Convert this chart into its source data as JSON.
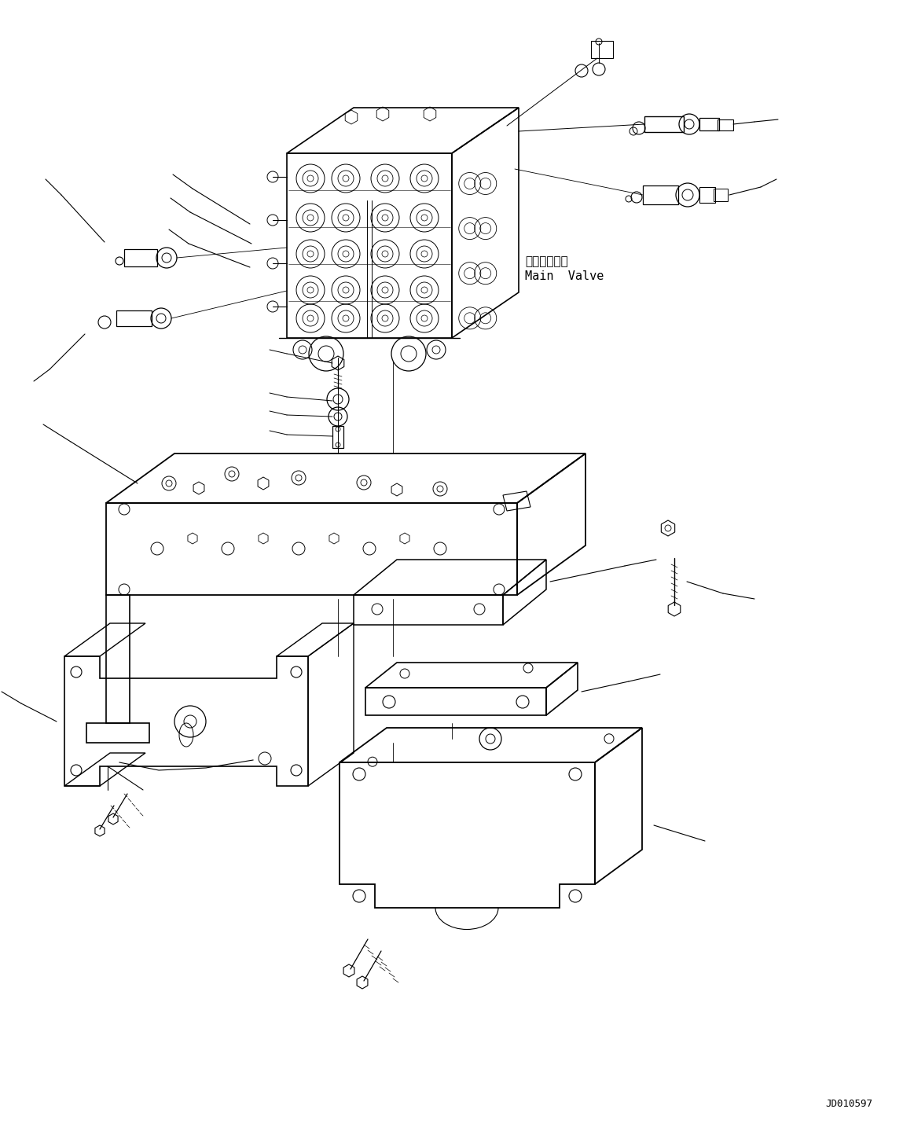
{
  "bg_color": "#ffffff",
  "lc": "#000000",
  "lw": 0.8,
  "label_jp": "メインバルブ",
  "label_en": "Main  Valve",
  "part_code": "JD010597",
  "figsize": [
    11.63,
    14.39
  ],
  "dpi": 100
}
